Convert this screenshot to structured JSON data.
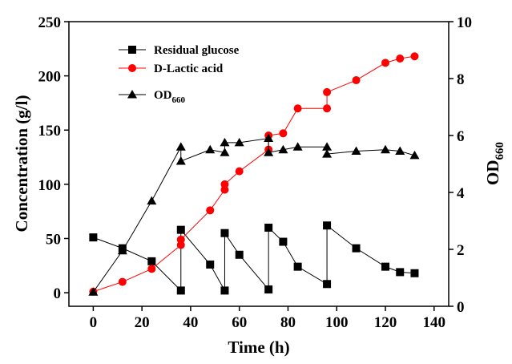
{
  "chart_data": {
    "type": "line",
    "xlabel": "Time (h)",
    "ylabel": "Concentration (g/l)",
    "y2label": "OD",
    "y2label_subscript": "660",
    "xlim": [
      -10,
      146
    ],
    "xticks": [
      0,
      20,
      40,
      60,
      80,
      100,
      120,
      140
    ],
    "ylim": [
      -12.5,
      250
    ],
    "yticks": [
      0,
      50,
      100,
      150,
      200,
      250
    ],
    "y2lim": [
      0,
      10
    ],
    "y2ticks": [
      0,
      2,
      4,
      6,
      8,
      10
    ],
    "series": [
      {
        "name": "Residual glucose",
        "color": "#000000",
        "marker": "square",
        "x": [
          0,
          12,
          24,
          36,
          36,
          48,
          54,
          54,
          60,
          72,
          72,
          78,
          84,
          96,
          96,
          108,
          120,
          126,
          132
        ],
        "values": [
          51,
          41,
          29,
          2,
          58,
          26,
          2,
          55,
          35,
          3,
          60,
          47,
          24,
          8,
          62,
          41,
          24,
          19,
          18
        ]
      },
      {
        "name": "D-Lactic acid",
        "color": "#ff0000",
        "marker": "circle",
        "x": [
          0,
          12,
          24,
          36,
          36,
          48,
          54,
          54,
          60,
          72,
          72,
          78,
          84,
          96,
          96,
          108,
          120,
          126,
          132
        ],
        "values": [
          1,
          10,
          22,
          44,
          49,
          76,
          95,
          100,
          112,
          132,
          145,
          147,
          170,
          170,
          185,
          196,
          212,
          216,
          218
        ]
      },
      {
        "name": "OD",
        "name_subscript": "660",
        "color": "#000000",
        "marker": "triangle",
        "axis": "y2",
        "x": [
          0,
          12,
          24,
          36,
          36,
          48,
          54,
          54,
          60,
          72,
          72,
          78,
          84,
          96,
          96,
          108,
          120,
          126,
          132
        ],
        "values": [
          0.5,
          1.95,
          3.7,
          5.6,
          5.1,
          5.5,
          5.4,
          5.75,
          5.75,
          5.9,
          5.4,
          5.5,
          5.6,
          5.6,
          5.35,
          5.45,
          5.5,
          5.45,
          5.3
        ]
      }
    ]
  }
}
